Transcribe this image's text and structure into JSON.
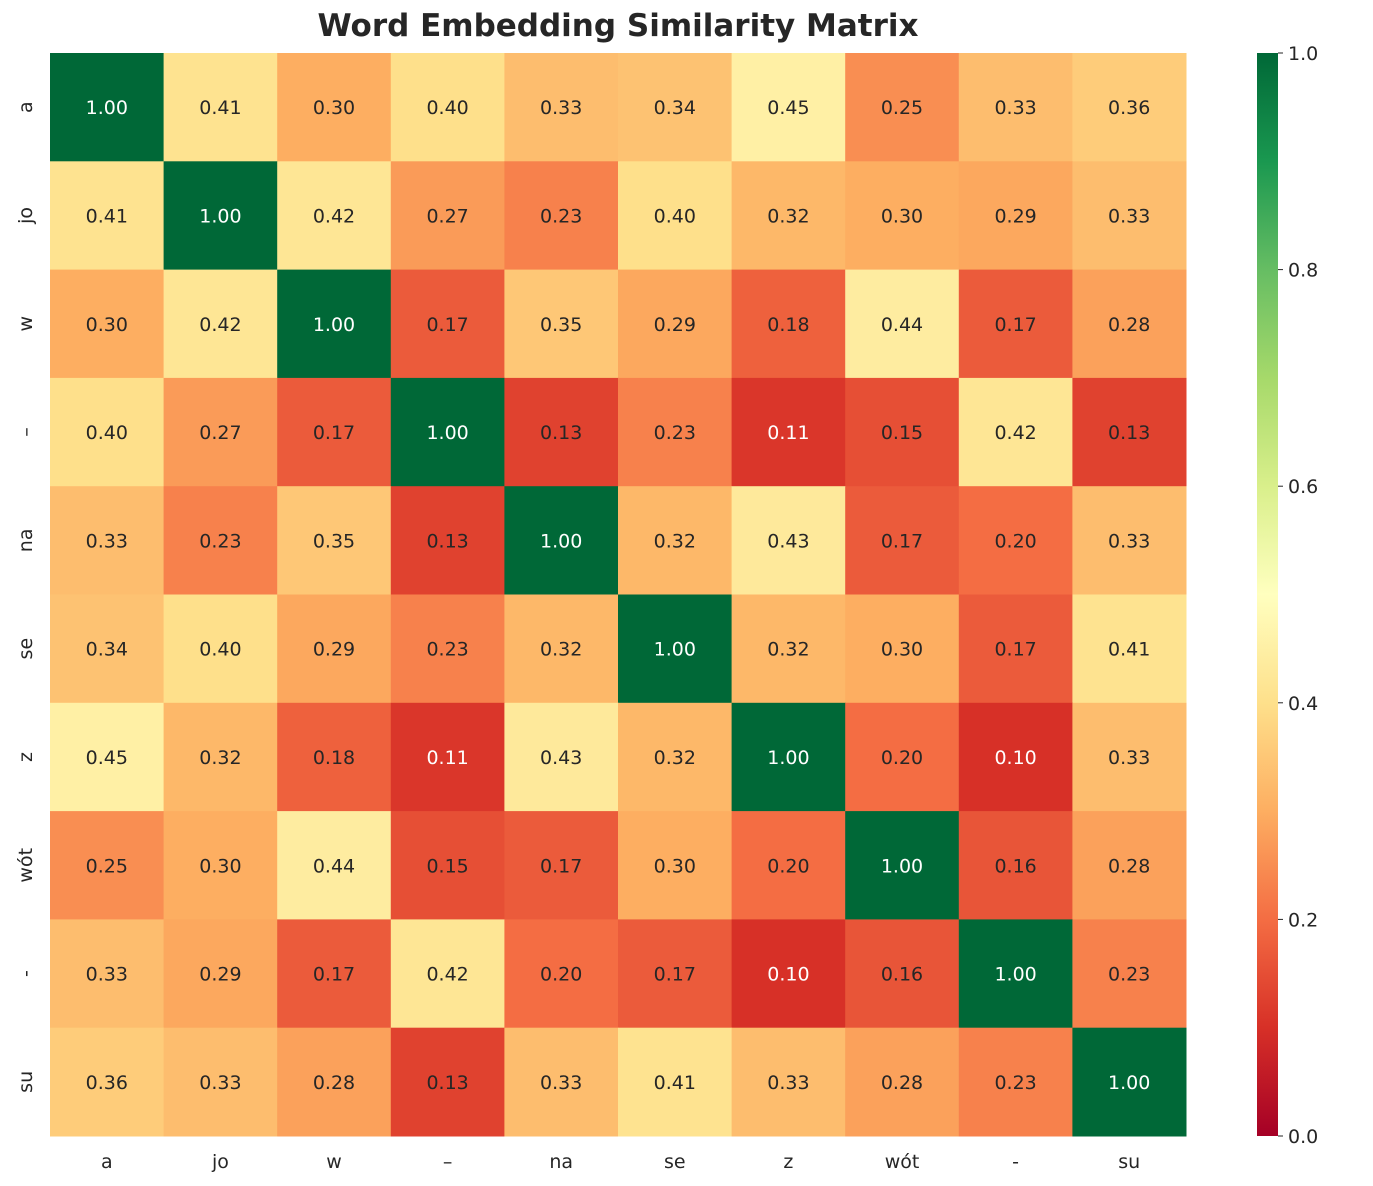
{
  "chart_data": {
    "type": "heatmap",
    "title": "Word Embedding Similarity Matrix",
    "x_labels": [
      "a",
      "jo",
      "w",
      "–",
      "na",
      "se",
      "z",
      "wót",
      "-",
      "su"
    ],
    "y_labels": [
      "a",
      "jo",
      "w",
      "–",
      "na",
      "se",
      "z",
      "wót",
      "-",
      "su"
    ],
    "values": [
      [
        1.0,
        0.41,
        0.3,
        0.4,
        0.33,
        0.34,
        0.45,
        0.25,
        0.33,
        0.36
      ],
      [
        0.41,
        1.0,
        0.42,
        0.27,
        0.23,
        0.4,
        0.32,
        0.3,
        0.29,
        0.33
      ],
      [
        0.3,
        0.42,
        1.0,
        0.17,
        0.35,
        0.29,
        0.18,
        0.44,
        0.17,
        0.28
      ],
      [
        0.4,
        0.27,
        0.17,
        1.0,
        0.13,
        0.23,
        0.11,
        0.15,
        0.42,
        0.13
      ],
      [
        0.33,
        0.23,
        0.35,
        0.13,
        1.0,
        0.32,
        0.43,
        0.17,
        0.2,
        0.33
      ],
      [
        0.34,
        0.4,
        0.29,
        0.23,
        0.32,
        1.0,
        0.32,
        0.3,
        0.17,
        0.41
      ],
      [
        0.45,
        0.32,
        0.18,
        0.11,
        0.43,
        0.32,
        1.0,
        0.2,
        0.1,
        0.33
      ],
      [
        0.25,
        0.3,
        0.44,
        0.15,
        0.17,
        0.3,
        0.2,
        1.0,
        0.16,
        0.28
      ],
      [
        0.33,
        0.29,
        0.17,
        0.42,
        0.2,
        0.17,
        0.1,
        0.16,
        1.0,
        0.23
      ],
      [
        0.36,
        0.33,
        0.28,
        0.13,
        0.33,
        0.41,
        0.33,
        0.28,
        0.23,
        1.0
      ]
    ],
    "colormap": "RdYlGn",
    "colormap_stops": [
      "#a50026",
      "#d73027",
      "#f46d43",
      "#fdae61",
      "#fee08b",
      "#ffffbf",
      "#d9ef8b",
      "#a6d96a",
      "#66bd63",
      "#1a9850",
      "#006837"
    ],
    "vmin": 0.0,
    "vmax": 1.0,
    "colorbar_ticks": [
      "0.0",
      "0.2",
      "0.4",
      "0.6",
      "0.8",
      "1.0"
    ],
    "annotation_format": "0.00"
  }
}
